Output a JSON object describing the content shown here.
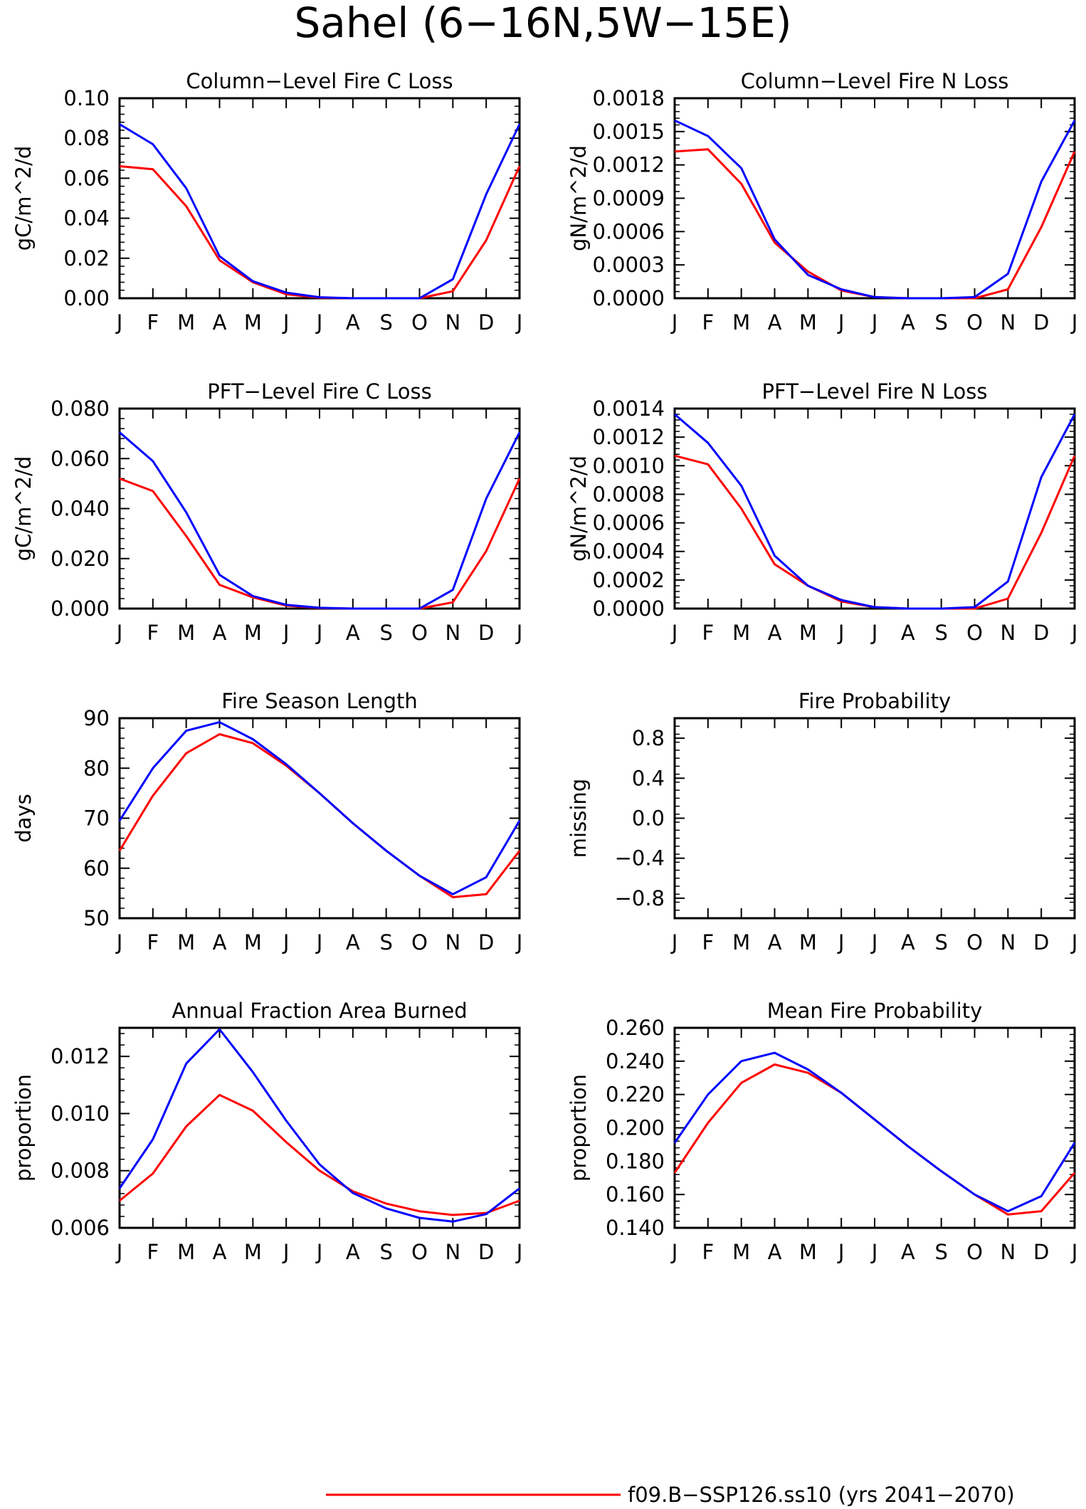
{
  "figure": {
    "title": "Sahel (6−16N,5W−15E)"
  },
  "legend": [
    {
      "name": "f09.B−SSP126.ss10 (yrs 2041−2070)",
      "color": "#ff0000"
    }
  ],
  "series_colors": [
    "#ff0000",
    "#0000ff"
  ],
  "chart_data": [
    {
      "type": "line",
      "title": "Column−Level Fire C Loss",
      "ylabel": "gC/m^2/d",
      "categories": [
        "J",
        "F",
        "M",
        "A",
        "M",
        "J",
        "J",
        "A",
        "S",
        "O",
        "N",
        "D",
        "J"
      ],
      "ylim": [
        0,
        0.1
      ],
      "yticks": [
        0,
        0.02,
        0.04,
        0.06,
        0.08,
        0.1
      ],
      "ytick_labels": [
        "0.00",
        "0.02",
        "0.04",
        "0.06",
        "0.08",
        "0.10"
      ],
      "series": [
        {
          "color": "#ff0000",
          "values": [
            0.066,
            0.0645,
            0.046,
            0.019,
            0.008,
            0.002,
            0.0003,
            0,
            0,
            0,
            0.0035,
            0.029,
            0.066
          ]
        },
        {
          "color": "#0000ff",
          "values": [
            0.087,
            0.077,
            0.055,
            0.021,
            0.0085,
            0.0028,
            0.0005,
            0,
            0,
            0,
            0.0095,
            0.052,
            0.087
          ]
        }
      ]
    },
    {
      "type": "line",
      "title": "Column−Level Fire N Loss",
      "ylabel": "gN/m^2/d",
      "categories": [
        "J",
        "F",
        "M",
        "A",
        "M",
        "J",
        "J",
        "A",
        "S",
        "O",
        "N",
        "D",
        "J"
      ],
      "ylim": [
        0,
        0.0018
      ],
      "yticks": [
        0,
        0.0003,
        0.0006,
        0.0009,
        0.0012,
        0.0015,
        0.0018
      ],
      "ytick_labels": [
        "0.0000",
        "0.0003",
        "0.0006",
        "0.0009",
        "0.0012",
        "0.0015",
        "0.0018"
      ],
      "series": [
        {
          "color": "#ff0000",
          "values": [
            0.00132,
            0.00134,
            0.00103,
            0.0005,
            0.00024,
            7e-05,
            1e-05,
            0,
            0,
            0,
            8e-05,
            0.00064,
            0.00132
          ]
        },
        {
          "color": "#0000ff",
          "values": [
            0.0016,
            0.00146,
            0.00117,
            0.00053,
            0.00021,
            8e-05,
            1e-05,
            0,
            0,
            1e-05,
            0.00022,
            0.00105,
            0.0016
          ]
        }
      ]
    },
    {
      "type": "line",
      "title": "PFT−Level Fire C Loss",
      "ylabel": "gC/m^2/d",
      "categories": [
        "J",
        "F",
        "M",
        "A",
        "M",
        "J",
        "J",
        "A",
        "S",
        "O",
        "N",
        "D",
        "J"
      ],
      "ylim": [
        0,
        0.08
      ],
      "yticks": [
        0,
        0.02,
        0.04,
        0.06,
        0.08
      ],
      "ytick_labels": [
        "0.000",
        "0.020",
        "0.040",
        "0.060",
        "0.080"
      ],
      "series": [
        {
          "color": "#ff0000",
          "values": [
            0.052,
            0.047,
            0.029,
            0.0095,
            0.0045,
            0.0012,
            0.0002,
            0,
            0,
            0,
            0.0025,
            0.023,
            0.052
          ]
        },
        {
          "color": "#0000ff",
          "values": [
            0.0705,
            0.059,
            0.0385,
            0.0135,
            0.005,
            0.0015,
            0.0003,
            0,
            0,
            0,
            0.0075,
            0.044,
            0.0705
          ]
        }
      ]
    },
    {
      "type": "line",
      "title": "PFT−Level Fire N Loss",
      "ylabel": "gN/m^2/d",
      "categories": [
        "J",
        "F",
        "M",
        "A",
        "M",
        "J",
        "J",
        "A",
        "S",
        "O",
        "N",
        "D",
        "J"
      ],
      "ylim": [
        0,
        0.0014
      ],
      "yticks": [
        0,
        0.0002,
        0.0004,
        0.0006,
        0.0008,
        0.001,
        0.0012,
        0.0014
      ],
      "ytick_labels": [
        "0.0000",
        "0.0002",
        "0.0004",
        "0.0006",
        "0.0008",
        "0.0010",
        "0.0012",
        "0.0014"
      ],
      "series": [
        {
          "color": "#ff0000",
          "values": [
            0.00107,
            0.00101,
            0.0007,
            0.00031,
            0.00016,
            5e-05,
            1e-05,
            0,
            0,
            0,
            7e-05,
            0.00053,
            0.00107
          ]
        },
        {
          "color": "#0000ff",
          "values": [
            0.00136,
            0.00116,
            0.00086,
            0.00037,
            0.00016,
            6e-05,
            1e-05,
            0,
            0,
            1e-05,
            0.00019,
            0.00092,
            0.00136
          ]
        }
      ]
    },
    {
      "type": "line",
      "title": "Fire Season Length",
      "ylabel": "days",
      "categories": [
        "J",
        "F",
        "M",
        "A",
        "M",
        "J",
        "J",
        "A",
        "S",
        "O",
        "N",
        "D",
        "J"
      ],
      "ylim": [
        50,
        90
      ],
      "yticks": [
        50,
        60,
        70,
        80,
        90
      ],
      "ytick_labels": [
        "50",
        "60",
        "70",
        "80",
        "90"
      ],
      "series": [
        {
          "color": "#ff0000",
          "values": [
            63.5,
            74.5,
            83,
            86.8,
            85,
            80.5,
            75,
            69,
            63.5,
            58.5,
            54.2,
            54.8,
            63.5
          ]
        },
        {
          "color": "#0000ff",
          "values": [
            69.5,
            80,
            87.5,
            89.2,
            85.8,
            80.8,
            75,
            69,
            63.5,
            58.5,
            54.8,
            58.2,
            69.5
          ]
        }
      ]
    },
    {
      "type": "line",
      "title": "Fire Probability",
      "ylabel": "missing",
      "categories": [
        "J",
        "F",
        "M",
        "A",
        "M",
        "J",
        "J",
        "A",
        "S",
        "O",
        "N",
        "D",
        "J"
      ],
      "ylim": [
        -1,
        1
      ],
      "yticks": [
        -0.8,
        -0.4,
        0,
        0.4,
        0.8
      ],
      "ytick_labels": [
        "−0.8",
        "−0.4",
        "0.0",
        "0.4",
        "0.8"
      ],
      "series": []
    },
    {
      "type": "line",
      "title": "Annual Fraction Area Burned",
      "ylabel": "proportion",
      "categories": [
        "J",
        "F",
        "M",
        "A",
        "M",
        "J",
        "J",
        "A",
        "S",
        "O",
        "N",
        "D",
        "J"
      ],
      "ylim": [
        0.006,
        0.013
      ],
      "yticks": [
        0.006,
        0.008,
        0.01,
        0.012
      ],
      "ytick_labels": [
        "0.006",
        "0.008",
        "0.010",
        "0.012"
      ],
      "series": [
        {
          "color": "#ff0000",
          "values": [
            0.00695,
            0.0079,
            0.00955,
            0.01065,
            0.0101,
            0.009,
            0.008,
            0.00728,
            0.00685,
            0.00658,
            0.00645,
            0.00652,
            0.00695
          ]
        },
        {
          "color": "#0000ff",
          "values": [
            0.00738,
            0.0091,
            0.01175,
            0.01295,
            0.01145,
            0.00975,
            0.00822,
            0.00722,
            0.00668,
            0.00635,
            0.00622,
            0.00648,
            0.00738
          ]
        }
      ]
    },
    {
      "type": "line",
      "title": "Mean Fire Probability",
      "ylabel": "proportion",
      "categories": [
        "J",
        "F",
        "M",
        "A",
        "M",
        "J",
        "J",
        "A",
        "S",
        "O",
        "N",
        "D",
        "J"
      ],
      "ylim": [
        0.14,
        0.26
      ],
      "yticks": [
        0.14,
        0.16,
        0.18,
        0.2,
        0.22,
        0.24,
        0.26
      ],
      "ytick_labels": [
        "0.140",
        "0.160",
        "0.180",
        "0.200",
        "0.220",
        "0.240",
        "0.260"
      ],
      "series": [
        {
          "color": "#ff0000",
          "values": [
            0.173,
            0.203,
            0.227,
            0.238,
            0.233,
            0.221,
            0.205,
            0.189,
            0.174,
            0.16,
            0.148,
            0.15,
            0.173
          ]
        },
        {
          "color": "#0000ff",
          "values": [
            0.191,
            0.22,
            0.24,
            0.245,
            0.235,
            0.221,
            0.205,
            0.189,
            0.174,
            0.16,
            0.15,
            0.159,
            0.191
          ]
        }
      ]
    }
  ]
}
